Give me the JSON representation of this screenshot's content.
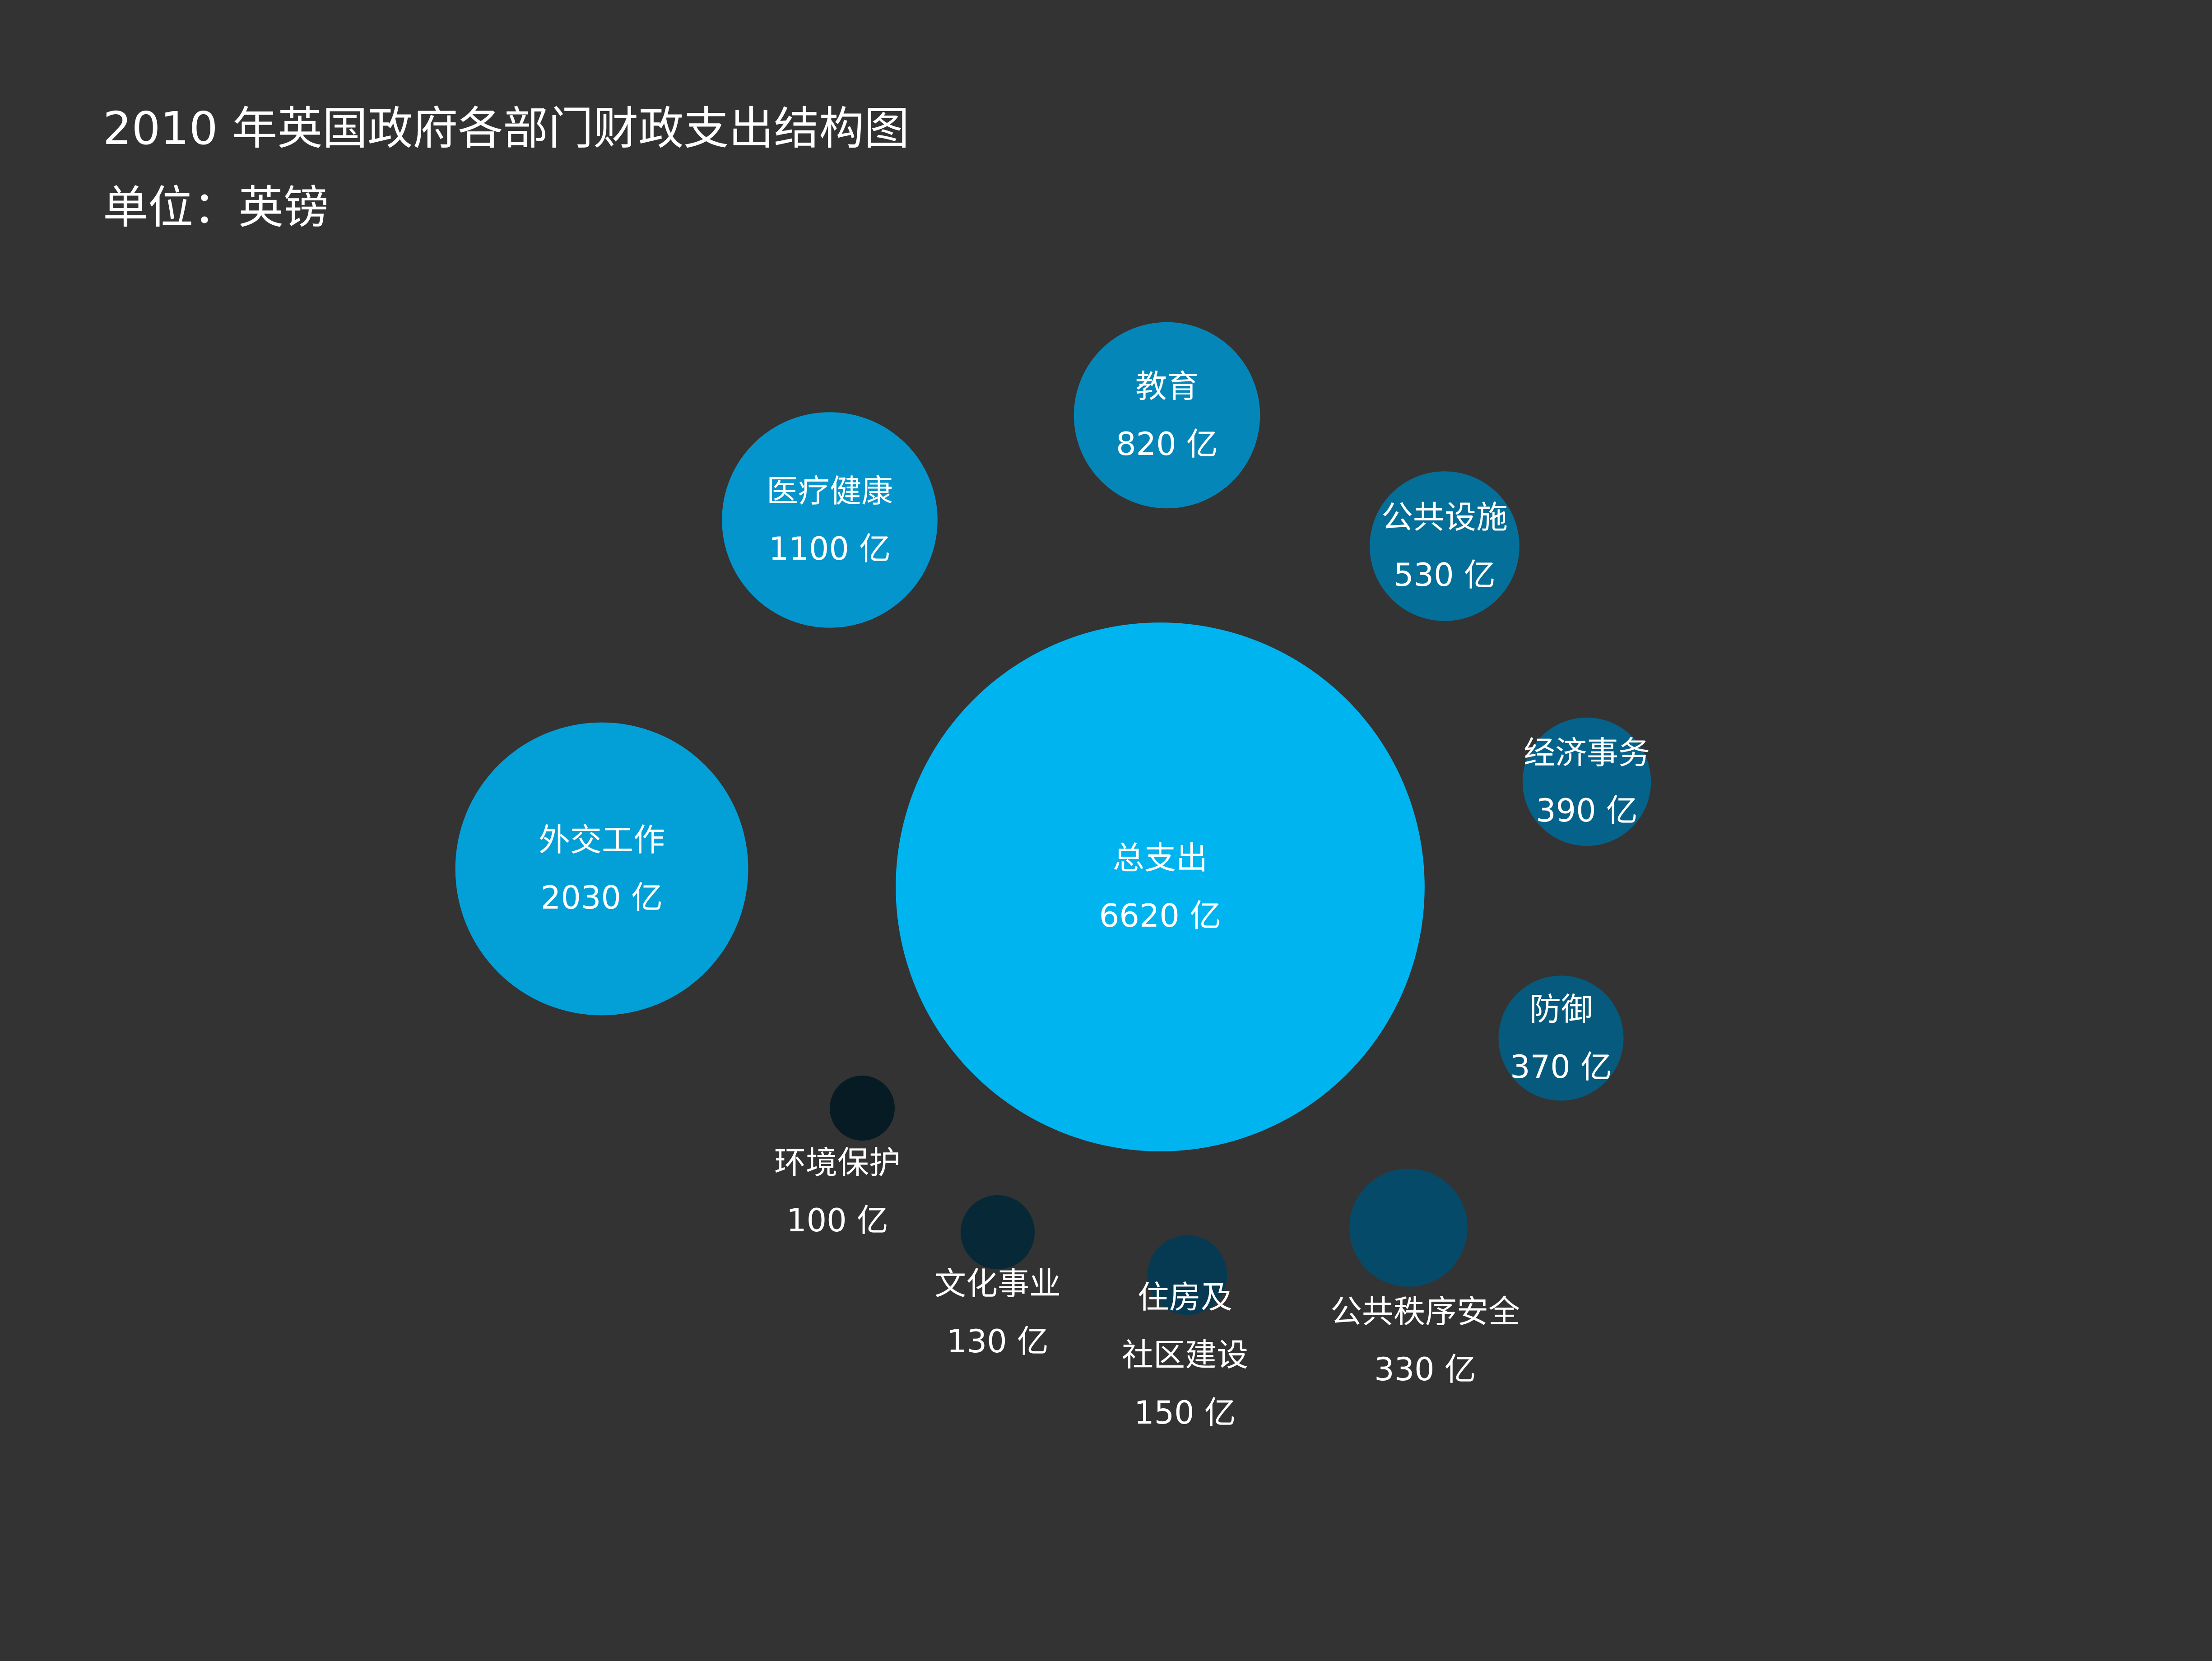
{
  "chart_data": {
    "type": "bubble",
    "title": "2010 年英国政府各部门财政支出结构图",
    "subtitle": "单位：英镑",
    "unit_suffix": "亿",
    "center": {
      "name": "总支出",
      "value": 6620,
      "label": "6620 亿",
      "color": "#00b4f0"
    },
    "items": [
      {
        "name": "教育",
        "value": 820,
        "label": "820 亿",
        "color": "#0487b8"
      },
      {
        "name": "医疗健康",
        "value": 1100,
        "label": "1100 亿",
        "color": "#0395cc"
      },
      {
        "name": "公共设施",
        "value": 530,
        "label": "530 亿",
        "color": "#047099"
      },
      {
        "name": "经济事务",
        "value": 390,
        "label": "390 亿",
        "color": "#05628a"
      },
      {
        "name": "外交工作",
        "value": 2030,
        "label": "2030 亿",
        "color": "#03a0d8"
      },
      {
        "name": "防御",
        "value": 370,
        "label": "370 亿",
        "color": "#055a7e"
      },
      {
        "name": "环境保护",
        "value": 100,
        "label": "100 亿",
        "color": "#061b24"
      },
      {
        "name": "文化事业",
        "value": 130,
        "label": "130 亿",
        "color": "#062837"
      },
      {
        "name": "住房及\n社区建设",
        "value": 150,
        "label": "150 亿",
        "color": "#063a52"
      },
      {
        "name": "公共秩序安全",
        "value": 330,
        "label": "330 亿",
        "color": "#054b69"
      }
    ]
  }
}
